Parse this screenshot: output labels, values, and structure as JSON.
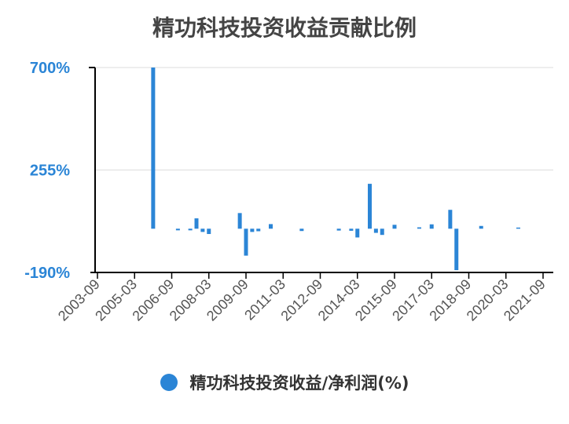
{
  "chart_data": {
    "type": "bar",
    "title": "精功科技投资收益贡献比例",
    "legend": {
      "position": "bottom",
      "entries": [
        "精功科技投资收益/净利润(%)"
      ]
    },
    "ylim": [
      -190,
      700
    ],
    "y_ticks": [
      "700%",
      "255%",
      "-190%"
    ],
    "y_tick_values": [
      700,
      255,
      -190
    ],
    "x_ticks": [
      "2003-09",
      "2005-03",
      "2006-09",
      "2008-03",
      "2009-09",
      "2011-03",
      "2012-09",
      "2014-03",
      "2015-09",
      "2017-03",
      "2018-09",
      "2020-03",
      "2021-09"
    ],
    "grid": true,
    "colors": {
      "bar": "#2b85d6",
      "axis_label": "#2b85d6",
      "grid": "#dddddd"
    },
    "series": [
      {
        "name": "精功科技投资收益/净利润(%)",
        "points": [
          {
            "x": "2005-12",
            "y": 700
          },
          {
            "x": "2006-12",
            "y": -7
          },
          {
            "x": "2007-06",
            "y": -7
          },
          {
            "x": "2007-09",
            "y": 45
          },
          {
            "x": "2007-12",
            "y": -14
          },
          {
            "x": "2008-03",
            "y": -23
          },
          {
            "x": "2009-06",
            "y": 68
          },
          {
            "x": "2009-09",
            "y": -117
          },
          {
            "x": "2009-12",
            "y": -14
          },
          {
            "x": "2010-03",
            "y": -11
          },
          {
            "x": "2010-09",
            "y": 20
          },
          {
            "x": "2011-12",
            "y": -10
          },
          {
            "x": "2013-06",
            "y": -8
          },
          {
            "x": "2013-12",
            "y": -9
          },
          {
            "x": "2014-03",
            "y": -38
          },
          {
            "x": "2014-09",
            "y": 195
          },
          {
            "x": "2014-12",
            "y": -18
          },
          {
            "x": "2015-03",
            "y": -27
          },
          {
            "x": "2015-09",
            "y": 17
          },
          {
            "x": "2016-09",
            "y": 6
          },
          {
            "x": "2017-03",
            "y": 19
          },
          {
            "x": "2017-12",
            "y": 82
          },
          {
            "x": "2018-03",
            "y": -180
          },
          {
            "x": "2019-03",
            "y": 12
          },
          {
            "x": "2020-09",
            "y": 5
          }
        ]
      }
    ]
  }
}
